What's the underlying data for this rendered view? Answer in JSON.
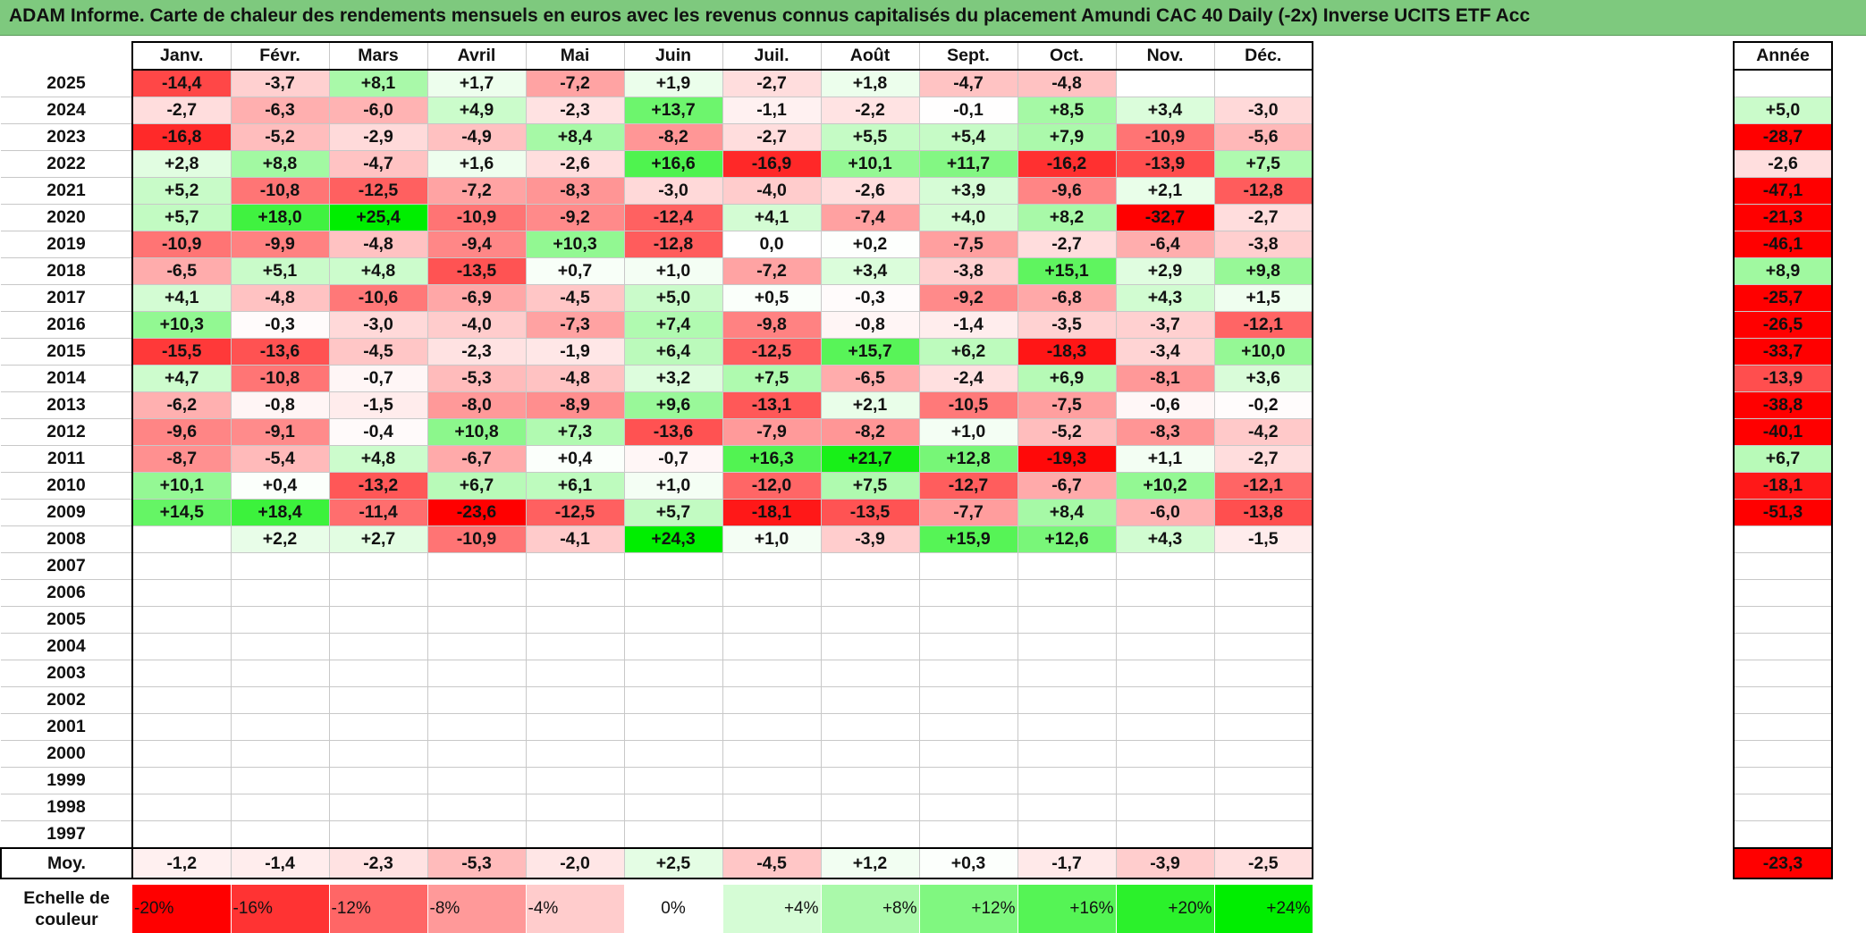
{
  "title": "ADAM Informe. Carte de chaleur des rendements mensuels en euros avec les revenus connus capitalisés du placement Amundi CAC 40 Daily (-2x) Inverse UCITS ETF Acc",
  "chart_data": {
    "type": "heatmap",
    "title": "ADAM Informe. Carte de chaleur des rendements mensuels en euros avec les revenus connus capitalisés du placement Amundi CAC 40 Daily (-2x) Inverse UCITS ETF Acc",
    "months": [
      "Janv.",
      "Févr.",
      "Mars",
      "Avril",
      "Mai",
      "Juin",
      "Juil.",
      "Août",
      "Sept.",
      "Oct.",
      "Nov.",
      "Déc."
    ],
    "year_header": "Année",
    "average_label": "Moy.",
    "rows": [
      {
        "year": "2025",
        "months": [
          "-14,4",
          "-3,7",
          "+8,1",
          "+1,7",
          "-7,2",
          "+1,9",
          "-2,7",
          "+1,8",
          "-4,7",
          "-4,8",
          "",
          ""
        ],
        "annual": ""
      },
      {
        "year": "2024",
        "months": [
          "-2,7",
          "-6,3",
          "-6,0",
          "+4,9",
          "-2,3",
          "+13,7",
          "-1,1",
          "-2,2",
          "-0,1",
          "+8,5",
          "+3,4",
          "-3,0"
        ],
        "annual": "+5,0"
      },
      {
        "year": "2023",
        "months": [
          "-16,8",
          "-5,2",
          "-2,9",
          "-4,9",
          "+8,4",
          "-8,2",
          "-2,7",
          "+5,5",
          "+5,4",
          "+7,9",
          "-10,9",
          "-5,6"
        ],
        "annual": "-28,7"
      },
      {
        "year": "2022",
        "months": [
          "+2,8",
          "+8,8",
          "-4,7",
          "+1,6",
          "-2,6",
          "+16,6",
          "-16,9",
          "+10,1",
          "+11,7",
          "-16,2",
          "-13,9",
          "+7,5"
        ],
        "annual": "-2,6"
      },
      {
        "year": "2021",
        "months": [
          "+5,2",
          "-10,8",
          "-12,5",
          "-7,2",
          "-8,3",
          "-3,0",
          "-4,0",
          "-2,6",
          "+3,9",
          "-9,6",
          "+2,1",
          "-12,8"
        ],
        "annual": "-47,1"
      },
      {
        "year": "2020",
        "months": [
          "+5,7",
          "+18,0",
          "+25,4",
          "-10,9",
          "-9,2",
          "-12,4",
          "+4,1",
          "-7,4",
          "+4,0",
          "+8,2",
          "-32,7",
          "-2,7"
        ],
        "annual": "-21,3"
      },
      {
        "year": "2019",
        "months": [
          "-10,9",
          "-9,9",
          "-4,8",
          "-9,4",
          "+10,3",
          "-12,8",
          "0,0",
          "+0,2",
          "-7,5",
          "-2,7",
          "-6,4",
          "-3,8"
        ],
        "annual": "-46,1"
      },
      {
        "year": "2018",
        "months": [
          "-6,5",
          "+5,1",
          "+4,8",
          "-13,5",
          "+0,7",
          "+1,0",
          "-7,2",
          "+3,4",
          "-3,8",
          "+15,1",
          "+2,9",
          "+9,8"
        ],
        "annual": "+8,9"
      },
      {
        "year": "2017",
        "months": [
          "+4,1",
          "-4,8",
          "-10,6",
          "-6,9",
          "-4,5",
          "+5,0",
          "+0,5",
          "-0,3",
          "-9,2",
          "-6,8",
          "+4,3",
          "+1,5"
        ],
        "annual": "-25,7"
      },
      {
        "year": "2016",
        "months": [
          "+10,3",
          "-0,3",
          "-3,0",
          "-4,0",
          "-7,3",
          "+7,4",
          "-9,8",
          "-0,8",
          "-1,4",
          "-3,5",
          "-3,7",
          "-12,1"
        ],
        "annual": "-26,5"
      },
      {
        "year": "2015",
        "months": [
          "-15,5",
          "-13,6",
          "-4,5",
          "-2,3",
          "-1,9",
          "+6,4",
          "-12,5",
          "+15,7",
          "+6,2",
          "-18,3",
          "-3,4",
          "+10,0"
        ],
        "annual": "-33,7"
      },
      {
        "year": "2014",
        "months": [
          "+4,7",
          "-10,8",
          "-0,7",
          "-5,3",
          "-4,8",
          "+3,2",
          "+7,5",
          "-6,5",
          "-2,4",
          "+6,9",
          "-8,1",
          "+3,6"
        ],
        "annual": "-13,9"
      },
      {
        "year": "2013",
        "months": [
          "-6,2",
          "-0,8",
          "-1,5",
          "-8,0",
          "-8,9",
          "+9,6",
          "-13,1",
          "+2,1",
          "-10,5",
          "-7,5",
          "-0,6",
          "-0,2"
        ],
        "annual": "-38,8"
      },
      {
        "year": "2012",
        "months": [
          "-9,6",
          "-9,1",
          "-0,4",
          "+10,8",
          "+7,3",
          "-13,6",
          "-7,9",
          "-8,2",
          "+1,0",
          "-5,2",
          "-8,3",
          "-4,2"
        ],
        "annual": "-40,1"
      },
      {
        "year": "2011",
        "months": [
          "-8,7",
          "-5,4",
          "+4,8",
          "-6,7",
          "+0,4",
          "-0,7",
          "+16,3",
          "+21,7",
          "+12,8",
          "-19,3",
          "+1,1",
          "-2,7"
        ],
        "annual": "+6,7"
      },
      {
        "year": "2010",
        "months": [
          "+10,1",
          "+0,4",
          "-13,2",
          "+6,7",
          "+6,1",
          "+1,0",
          "-12,0",
          "+7,5",
          "-12,7",
          "-6,7",
          "+10,2",
          "-12,1"
        ],
        "annual": "-18,1"
      },
      {
        "year": "2009",
        "months": [
          "+14,5",
          "+18,4",
          "-11,4",
          "-23,6",
          "-12,5",
          "+5,7",
          "-18,1",
          "-13,5",
          "-7,7",
          "+8,4",
          "-6,0",
          "-13,8"
        ],
        "annual": "-51,3"
      },
      {
        "year": "2008",
        "months": [
          "",
          "+2,2",
          "+2,7",
          "-10,9",
          "-4,1",
          "+24,3",
          "+1,0",
          "-3,9",
          "+15,9",
          "+12,6",
          "+4,3",
          "-1,5"
        ],
        "annual": ""
      },
      {
        "year": "2007",
        "months": [
          "",
          "",
          "",
          "",
          "",
          "",
          "",
          "",
          "",
          "",
          "",
          ""
        ],
        "annual": ""
      },
      {
        "year": "2006",
        "months": [
          "",
          "",
          "",
          "",
          "",
          "",
          "",
          "",
          "",
          "",
          "",
          ""
        ],
        "annual": ""
      },
      {
        "year": "2005",
        "months": [
          "",
          "",
          "",
          "",
          "",
          "",
          "",
          "",
          "",
          "",
          "",
          ""
        ],
        "annual": ""
      },
      {
        "year": "2004",
        "months": [
          "",
          "",
          "",
          "",
          "",
          "",
          "",
          "",
          "",
          "",
          "",
          ""
        ],
        "annual": ""
      },
      {
        "year": "2003",
        "months": [
          "",
          "",
          "",
          "",
          "",
          "",
          "",
          "",
          "",
          "",
          "",
          ""
        ],
        "annual": ""
      },
      {
        "year": "2002",
        "months": [
          "",
          "",
          "",
          "",
          "",
          "",
          "",
          "",
          "",
          "",
          "",
          ""
        ],
        "annual": ""
      },
      {
        "year": "2001",
        "months": [
          "",
          "",
          "",
          "",
          "",
          "",
          "",
          "",
          "",
          "",
          "",
          ""
        ],
        "annual": ""
      },
      {
        "year": "2000",
        "months": [
          "",
          "",
          "",
          "",
          "",
          "",
          "",
          "",
          "",
          "",
          "",
          ""
        ],
        "annual": ""
      },
      {
        "year": "1999",
        "months": [
          "",
          "",
          "",
          "",
          "",
          "",
          "",
          "",
          "",
          "",
          "",
          ""
        ],
        "annual": ""
      },
      {
        "year": "1998",
        "months": [
          "",
          "",
          "",
          "",
          "",
          "",
          "",
          "",
          "",
          "",
          "",
          ""
        ],
        "annual": ""
      },
      {
        "year": "1997",
        "months": [
          "",
          "",
          "",
          "",
          "",
          "",
          "",
          "",
          "",
          "",
          "",
          ""
        ],
        "annual": ""
      }
    ],
    "averages": {
      "months": [
        "-1,2",
        "-1,4",
        "-2,3",
        "-5,3",
        "-2,0",
        "+2,5",
        "-4,5",
        "+1,2",
        "+0,3",
        "-1,7",
        "-3,9",
        "-2,5"
      ],
      "annual": "-23,3"
    },
    "color_scale": {
      "label": "Echelle de couleur",
      "steps": [
        "-20%",
        "-16%",
        "-12%",
        "-8%",
        "-4%",
        "0%",
        "+4%",
        "+8%",
        "+12%",
        "+16%",
        "+20%",
        "+24%"
      ],
      "negative_color": "#ff0000",
      "neutral_color": "#ffffff",
      "positive_color": "#00ee00"
    }
  }
}
